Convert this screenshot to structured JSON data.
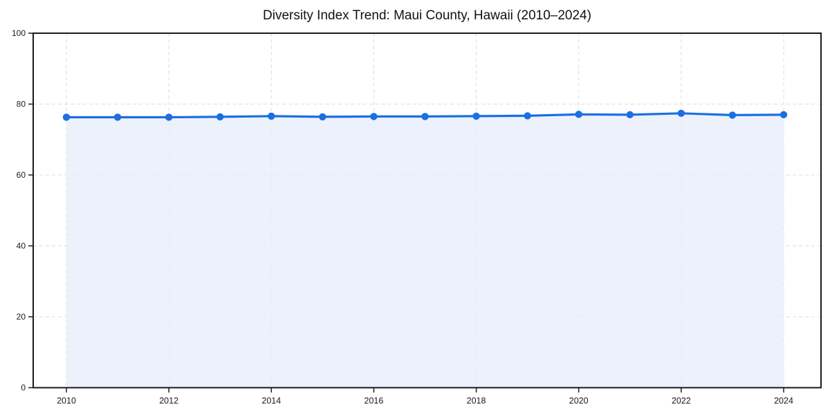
{
  "figure": {
    "title": "Diversity Index Trend: Maui County, Hawaii (2010–2024)"
  },
  "chart_data": {
    "type": "area",
    "title": "Diversity Index Trend: Maui County, Hawaii (2010–2024)",
    "x": [
      2010,
      2011,
      2012,
      2013,
      2014,
      2015,
      2016,
      2017,
      2018,
      2019,
      2020,
      2021,
      2022,
      2023,
      2024
    ],
    "series": [
      {
        "name": "Diversity Index",
        "values": [
          76.3,
          76.3,
          76.3,
          76.4,
          76.6,
          76.4,
          76.5,
          76.5,
          76.6,
          76.7,
          77.1,
          77.0,
          77.4,
          76.9,
          77.0
        ]
      }
    ],
    "xlabel": "",
    "ylabel": "",
    "ylim": [
      0,
      100
    ],
    "yticks": [
      0,
      20,
      40,
      60,
      80,
      100
    ],
    "xticks": [
      2010,
      2012,
      2014,
      2016,
      2018,
      2020,
      2022,
      2024
    ],
    "grid": true,
    "grid_style": "dashed",
    "legend": "none",
    "marker": "circle",
    "colors": {
      "line": "#1b6fe0",
      "marker": "#1b6fe0",
      "fill": "#e7edfb",
      "grid": "#dcdcdc",
      "spine": "#1a1a1a",
      "tick_label": "#1a1a1a",
      "title": "#111111",
      "background": "#ffffff"
    }
  }
}
